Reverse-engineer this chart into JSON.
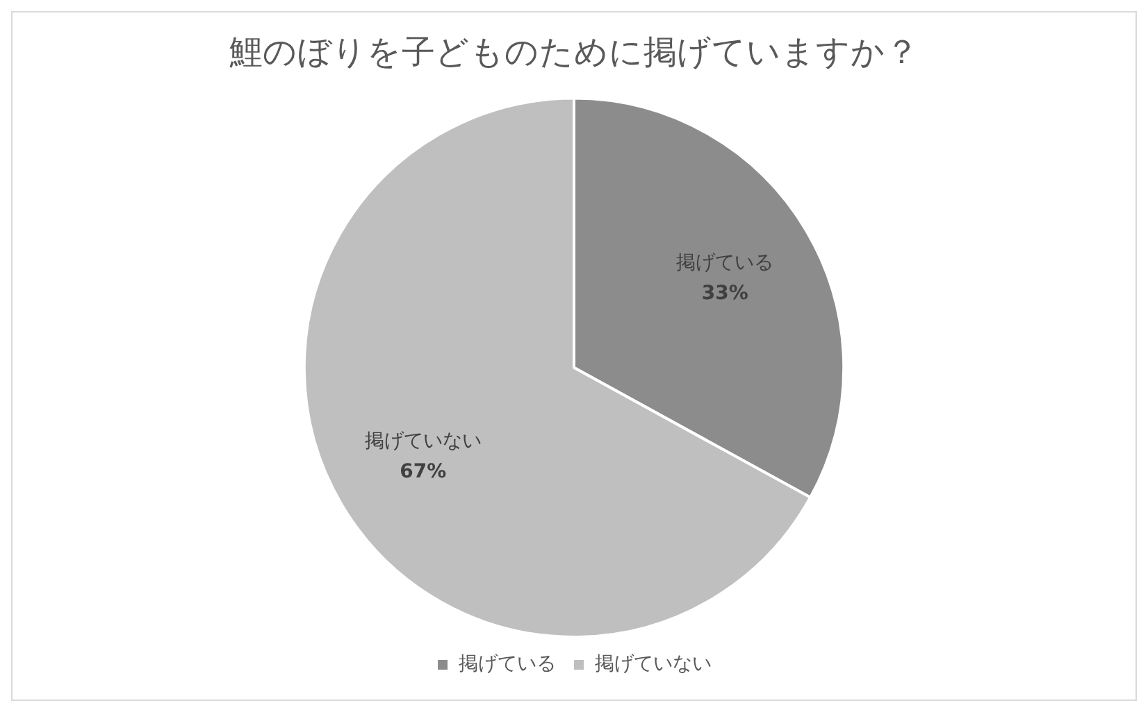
{
  "chart_data": {
    "type": "pie",
    "title": "鯉のぼりを子どものために掲げていますか？",
    "categories": [
      "掲げている",
      "掲げていない"
    ],
    "values": [
      33,
      67
    ],
    "colors": [
      "#8c8c8c",
      "#bfbfbf"
    ],
    "value_labels": [
      "33%",
      "67%"
    ],
    "legend": "bottom"
  }
}
